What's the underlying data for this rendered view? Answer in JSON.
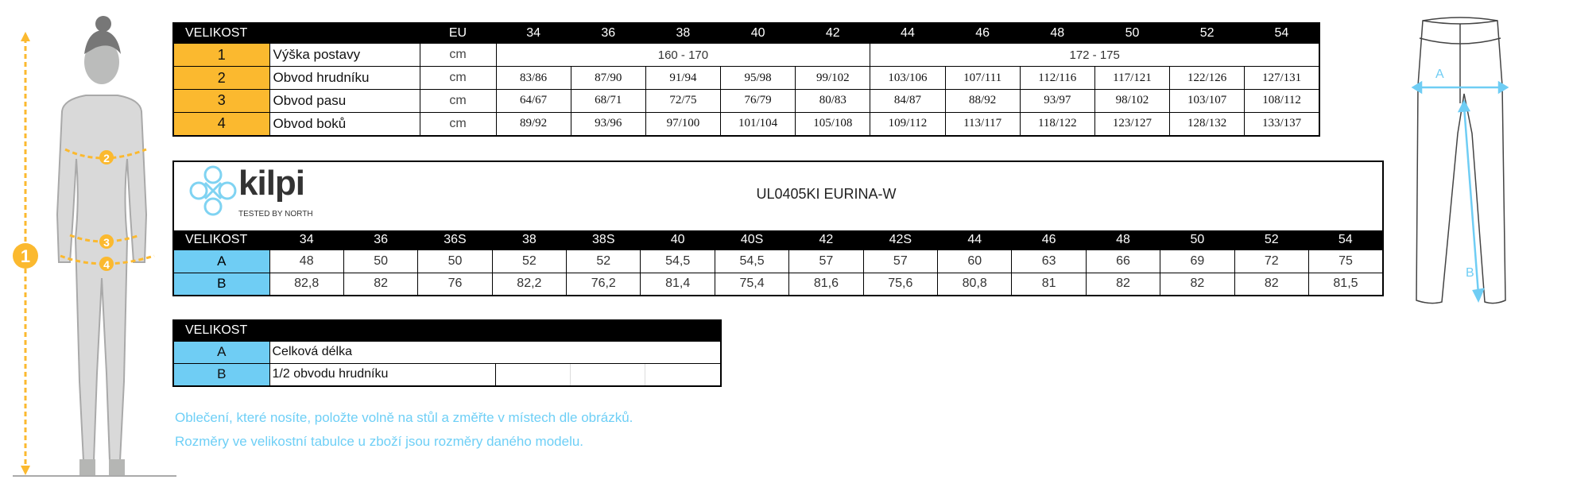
{
  "colors": {
    "body_measure": "#fbb92f",
    "garment_measure": "#6fcdf4",
    "header": "#000000",
    "note_text": "#6ecff6"
  },
  "body_table": {
    "header_label": "VELIKOST",
    "unit_header": "EU",
    "sizes": [
      "34",
      "36",
      "38",
      "40",
      "42",
      "44",
      "46",
      "48",
      "50",
      "52",
      "54"
    ],
    "rows": [
      {
        "num": "1",
        "name": "Výška postavy",
        "unit": "cm",
        "spans": [
          "160 - 170",
          "172 - 175"
        ]
      },
      {
        "num": "2",
        "name": "Obvod hrudníku",
        "unit": "cm",
        "values": [
          "83/86",
          "87/90",
          "91/94",
          "95/98",
          "99/102",
          "103/106",
          "107/111",
          "112/116",
          "117/121",
          "122/126",
          "127/131"
        ]
      },
      {
        "num": "3",
        "name": "Obvod pasu",
        "unit": "cm",
        "values": [
          "64/67",
          "68/71",
          "72/75",
          "76/79",
          "80/83",
          "84/87",
          "88/92",
          "93/97",
          "98/102",
          "103/107",
          "108/112"
        ]
      },
      {
        "num": "4",
        "name": "Obvod boků",
        "unit": "cm",
        "values": [
          "89/92",
          "93/96",
          "97/100",
          "101/104",
          "105/108",
          "109/112",
          "113/117",
          "118/122",
          "123/127",
          "128/132",
          "133/137"
        ]
      }
    ]
  },
  "product": {
    "brand": "kilpi",
    "tagline": "Tested by North",
    "title": "UL0405KI  EURINA-W"
  },
  "garment_table": {
    "header_label": "VELIKOST",
    "sizes": [
      "34",
      "36",
      "36S",
      "38",
      "38S",
      "40",
      "40S",
      "42",
      "42S",
      "44",
      "46",
      "48",
      "50",
      "52",
      "54"
    ],
    "rows": [
      {
        "label": "A",
        "values": [
          "48",
          "50",
          "50",
          "52",
          "52",
          "54,5",
          "54,5",
          "57",
          "57",
          "60",
          "63",
          "66",
          "69",
          "72",
          "75"
        ]
      },
      {
        "label": "B",
        "values": [
          "82,8",
          "82",
          "76",
          "82,2",
          "76,2",
          "81,4",
          "75,4",
          "81,6",
          "75,6",
          "80,8",
          "81",
          "82",
          "82",
          "82",
          "81,5"
        ]
      }
    ]
  },
  "legend_table": {
    "header_label": "VELIKOST",
    "rows": [
      {
        "label": "A",
        "desc": "Celková délka"
      },
      {
        "label": "B",
        "desc": "1/2 obvodu hrudníku"
      }
    ]
  },
  "notes": [
    "Oblečení, které nosíte, položte volně na stůl a změřte v místech dle obrázků.",
    "Rozměry ve velikostní tabulce u zboží jsou rozměry daného modelu."
  ],
  "figure": {
    "markers": [
      "1",
      "2",
      "3",
      "4"
    ]
  },
  "pants_figure": {
    "labels": [
      "A",
      "B"
    ]
  }
}
